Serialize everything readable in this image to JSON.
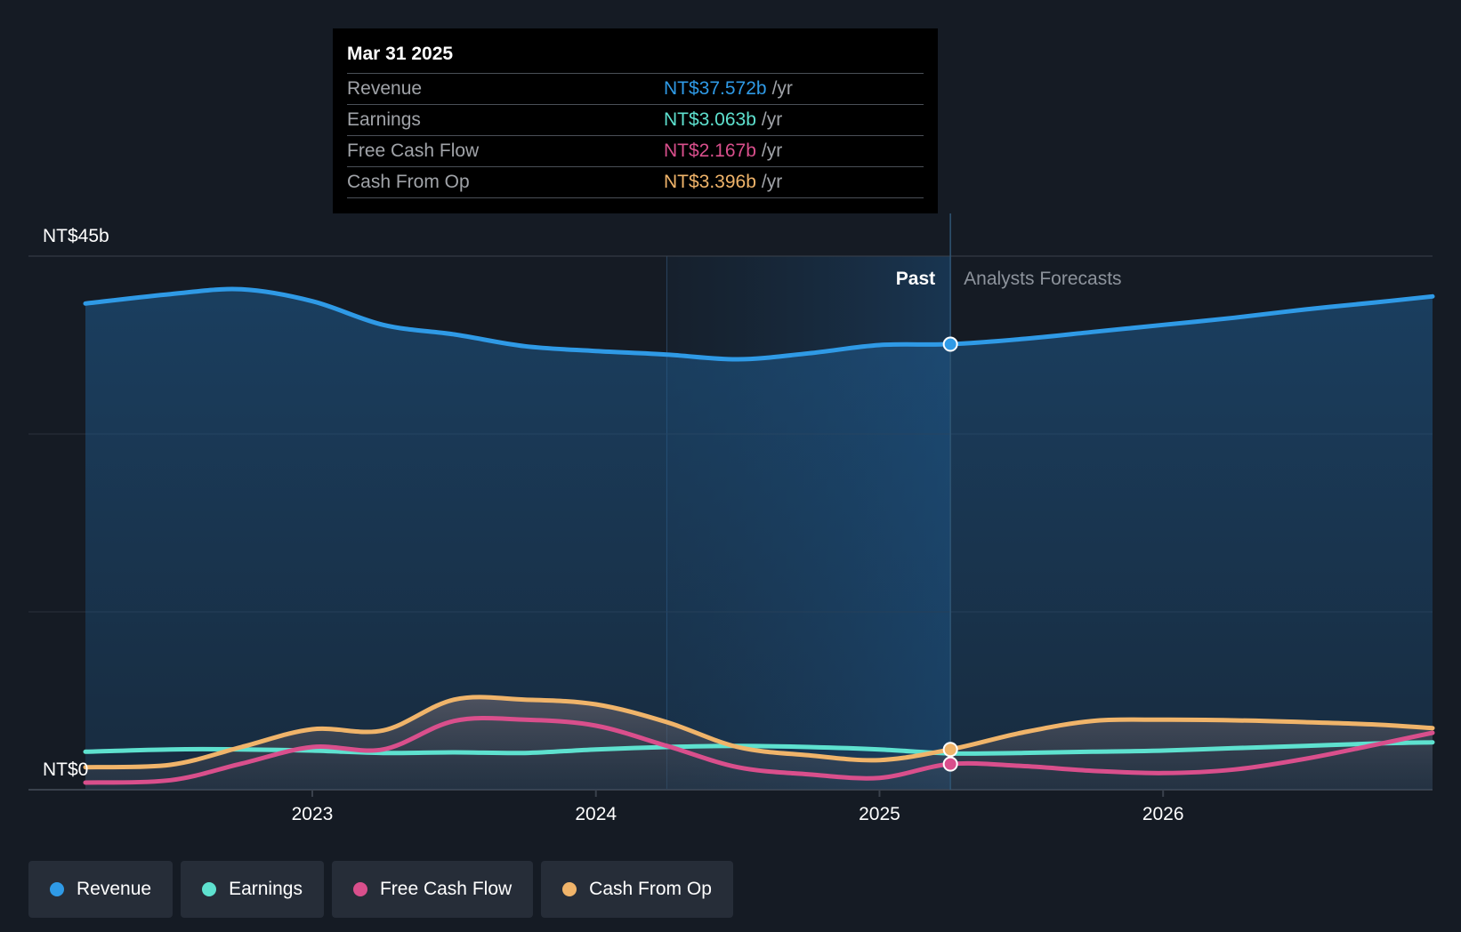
{
  "tooltip": {
    "date": "Mar 31 2025",
    "rows": [
      {
        "label": "Revenue",
        "value": "NT$37.572b",
        "unit": "/yr",
        "color": "#2f9ae6"
      },
      {
        "label": "Earnings",
        "value": "NT$3.063b",
        "unit": "/yr",
        "color": "#5ee1cf"
      },
      {
        "label": "Free Cash Flow",
        "value": "NT$2.167b",
        "unit": "/yr",
        "color": "#d94f8c"
      },
      {
        "label": "Cash From Op",
        "value": "NT$3.396b",
        "unit": "/yr",
        "color": "#f0b46a"
      }
    ]
  },
  "legend": [
    {
      "label": "Revenue",
      "color": "#2f9ae6"
    },
    {
      "label": "Earnings",
      "color": "#5ee1cf"
    },
    {
      "label": "Free Cash Flow",
      "color": "#d94f8c"
    },
    {
      "label": "Cash From Op",
      "color": "#f0b46a"
    }
  ],
  "chart_data": {
    "type": "line",
    "title": "",
    "xlabel": "",
    "ylabel": "",
    "y_top_label": "NT$45b",
    "y_zero_label": "NT$0",
    "ylim": [
      0,
      45
    ],
    "xlim": [
      2022.2,
      2026.95
    ],
    "x_ticks": [
      2023,
      2024,
      2025,
      2026
    ],
    "x_tick_labels": [
      "2023",
      "2024",
      "2025",
      "2026"
    ],
    "past_label": "Past",
    "forecast_label": "Analysts Forecasts",
    "past_shade_start": 2024.25,
    "divider_x": 2025.25,
    "series": [
      {
        "name": "Revenue",
        "color": "#2f9ae6",
        "x": [
          2022.2,
          2022.5,
          2022.75,
          2023.0,
          2023.25,
          2023.5,
          2023.75,
          2024.0,
          2024.25,
          2024.5,
          2024.75,
          2025.0,
          2025.25,
          2025.5,
          2025.75,
          2026.0,
          2026.25,
          2026.5,
          2026.75,
          2026.95
        ],
        "values": [
          41.0,
          41.8,
          42.2,
          41.2,
          39.2,
          38.4,
          37.4,
          37.0,
          36.7,
          36.3,
          36.8,
          37.5,
          37.572,
          38.0,
          38.6,
          39.2,
          39.8,
          40.5,
          41.1,
          41.6
        ]
      },
      {
        "name": "Earnings",
        "color": "#5ee1cf",
        "x": [
          2022.2,
          2022.5,
          2022.75,
          2023.0,
          2023.25,
          2023.5,
          2023.75,
          2024.0,
          2024.25,
          2024.5,
          2024.75,
          2025.0,
          2025.25,
          2025.5,
          2025.75,
          2026.0,
          2026.25,
          2026.5,
          2026.75,
          2026.95
        ],
        "values": [
          3.2,
          3.4,
          3.4,
          3.3,
          3.1,
          3.15,
          3.1,
          3.4,
          3.6,
          3.7,
          3.6,
          3.4,
          3.063,
          3.1,
          3.2,
          3.3,
          3.5,
          3.7,
          3.9,
          4.0
        ]
      },
      {
        "name": "Free Cash Flow",
        "color": "#d94f8c",
        "x": [
          2022.2,
          2022.5,
          2022.75,
          2023.0,
          2023.25,
          2023.5,
          2023.75,
          2024.0,
          2024.25,
          2024.5,
          2024.75,
          2025.0,
          2025.25,
          2025.5,
          2025.75,
          2026.0,
          2026.25,
          2026.5,
          2026.75,
          2026.95
        ],
        "values": [
          0.6,
          0.8,
          2.2,
          3.6,
          3.4,
          5.8,
          5.9,
          5.4,
          3.7,
          1.9,
          1.3,
          1.0,
          2.167,
          2.0,
          1.6,
          1.4,
          1.7,
          2.6,
          3.8,
          4.8
        ]
      },
      {
        "name": "Cash From Op",
        "color": "#f0b46a",
        "x": [
          2022.2,
          2022.5,
          2022.75,
          2023.0,
          2023.25,
          2023.5,
          2023.75,
          2024.0,
          2024.25,
          2024.5,
          2024.75,
          2025.0,
          2025.25,
          2025.5,
          2025.75,
          2026.0,
          2026.25,
          2026.5,
          2026.75,
          2026.95
        ],
        "values": [
          1.9,
          2.1,
          3.6,
          5.1,
          5.0,
          7.6,
          7.6,
          7.2,
          5.7,
          3.6,
          2.9,
          2.5,
          3.396,
          4.8,
          5.8,
          5.9,
          5.85,
          5.7,
          5.5,
          5.2
        ]
      }
    ]
  }
}
